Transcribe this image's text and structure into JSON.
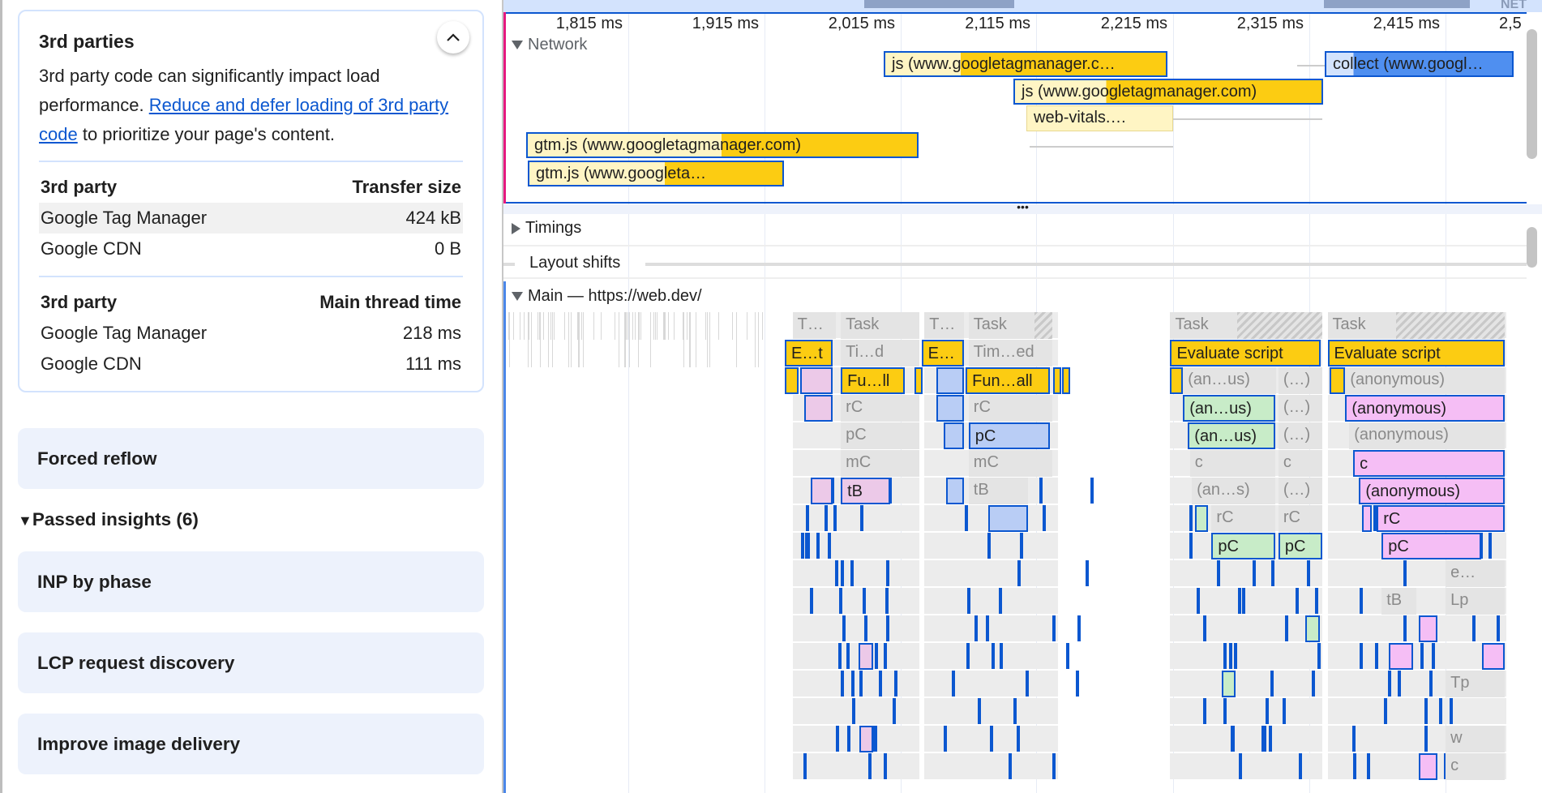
{
  "sidebar": {
    "third_parties": {
      "title": "3rd parties",
      "desc_before": "3rd party code can significantly impact load performance. ",
      "link": "Reduce and defer loading of 3rd party code",
      "desc_after": " to prioritize your page's content.",
      "transfer_table": {
        "headers": [
          "3rd party",
          "Transfer size"
        ],
        "rows": [
          [
            "Google Tag Manager",
            "424 kB"
          ],
          [
            "Google CDN",
            "0 B"
          ]
        ]
      },
      "thread_table": {
        "headers": [
          "3rd party",
          "Main thread time"
        ],
        "rows": [
          [
            "Google Tag Manager",
            "218 ms"
          ],
          [
            "Google CDN",
            "111 ms"
          ]
        ]
      }
    },
    "forced_reflow": "Forced reflow",
    "passed_label": "Passed insights (6)",
    "passed_items": [
      "INP by phase",
      "LCP request discovery",
      "Improve image delivery"
    ]
  },
  "timeline": {
    "overview_label": "NET",
    "ticks": [
      "1,815 ms",
      "1,915 ms",
      "2,015 ms",
      "2,115 ms",
      "2,215 ms",
      "2,315 ms",
      "2,415 ms",
      "2,5"
    ],
    "tracks": {
      "network": "Network",
      "timings": "Timings",
      "layout_shifts": "Layout shifts",
      "main": "Main — https://web.dev/"
    },
    "network_requests": [
      "js (www.googletagmanager.c…",
      "collect (www.googl…",
      "js (www.googletagmanager.com)",
      "web-vitals.…",
      "gtm.js (www.googletagmanager.com)",
      "gtm.js (www.googleta…"
    ],
    "flame_labels": {
      "t": "T…",
      "task": "Task",
      "et": "E…t",
      "tid": "Ti…d",
      "e": "E…",
      "timed": "Tim…ed",
      "eval": "Evaluate script",
      "full": "Fu…ll",
      "funall": "Fun…all",
      "anus": "(an…us)",
      "paren": "(…)",
      "anon": "(anonymous)",
      "rc": "rC",
      "pc": "pC",
      "mc": "mC",
      "c": "c",
      "tb": "tB",
      "ans": "(an…s)",
      "e2": "e…",
      "lp": "Lp",
      "tp": "Tp",
      "w": "w"
    },
    "colors": {
      "accent_border": "#0b57d0",
      "script_yellow": "#fccc12",
      "pink": "#f5bef5",
      "light_blue": "#b9cdf5",
      "green": "#c8ecc8",
      "task_grey": "#e4e4e4"
    }
  }
}
